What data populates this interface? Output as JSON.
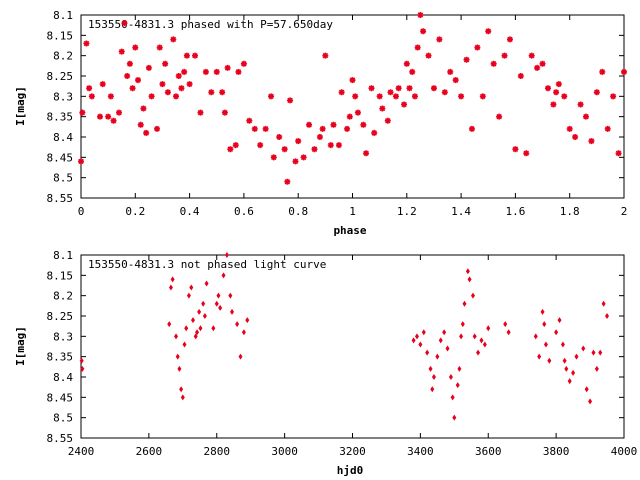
{
  "chart_data": [
    {
      "type": "scatter",
      "title": "153550-4831.3 phased with P=57.650day",
      "xlabel": "phase",
      "ylabel": "I[mag]",
      "xlim": [
        0,
        2
      ],
      "ylim": [
        8.55,
        8.1
      ],
      "y_inverted": true,
      "x_ticks": [
        "0",
        "0.2",
        "0.4",
        "0.6",
        "0.8",
        "1",
        "1.2",
        "1.4",
        "1.6",
        "1.8",
        "2"
      ],
      "y_ticks": [
        "8.1",
        "8.15",
        "8.2",
        "8.25",
        "8.3",
        "8.35",
        "8.4",
        "8.45",
        "8.5",
        "8.55"
      ],
      "marker_color": "#e8001c",
      "grid": false,
      "series": [
        {
          "x": [
            0.0,
            0.005,
            0.02,
            0.03,
            0.04,
            0.07,
            0.08,
            0.1,
            0.11,
            0.12,
            0.14,
            0.15,
            0.16,
            0.17,
            0.18,
            0.19,
            0.2,
            0.21,
            0.22,
            0.23,
            0.24,
            0.25,
            0.26,
            0.28,
            0.29,
            0.3,
            0.31,
            0.32,
            0.34,
            0.35,
            0.36,
            0.37,
            0.38,
            0.39,
            0.4,
            0.42,
            0.44,
            0.46,
            0.48,
            0.5,
            0.52,
            0.53,
            0.54,
            0.55,
            0.57,
            0.58,
            0.6,
            0.62,
            0.64,
            0.66,
            0.68,
            0.7,
            0.71,
            0.73,
            0.75,
            0.76,
            0.77,
            0.79,
            0.8,
            0.82,
            0.84,
            0.86,
            0.88,
            0.89,
            0.9,
            0.92,
            0.93,
            0.95,
            0.96,
            0.98,
            0.99,
            1.0,
            1.01,
            1.02,
            1.04,
            1.05,
            1.07,
            1.08,
            1.1,
            1.11,
            1.13,
            1.14,
            1.16,
            1.17,
            1.19,
            1.2,
            1.21,
            1.22,
            1.23,
            1.24,
            1.25,
            1.26,
            1.28,
            1.3,
            1.32,
            1.34,
            1.36,
            1.38,
            1.4,
            1.42,
            1.44,
            1.46,
            1.48,
            1.5,
            1.52,
            1.54,
            1.56,
            1.58,
            1.6,
            1.62,
            1.64,
            1.66,
            1.68,
            1.7,
            1.72,
            1.74,
            1.75,
            1.76,
            1.78,
            1.8,
            1.82,
            1.84,
            1.86,
            1.88,
            1.9,
            1.92,
            1.94,
            1.96,
            1.98,
            2.0
          ],
          "y": [
            8.46,
            8.34,
            8.17,
            8.28,
            8.3,
            8.35,
            8.27,
            8.35,
            8.3,
            8.36,
            8.34,
            8.19,
            8.12,
            8.25,
            8.22,
            8.28,
            8.18,
            8.26,
            8.37,
            8.33,
            8.39,
            8.23,
            8.3,
            8.38,
            8.18,
            8.27,
            8.22,
            8.29,
            8.16,
            8.3,
            8.25,
            8.28,
            8.24,
            8.2,
            8.27,
            8.2,
            8.34,
            8.24,
            8.29,
            8.24,
            8.29,
            8.34,
            8.23,
            8.43,
            8.42,
            8.24,
            8.22,
            8.36,
            8.38,
            8.42,
            8.38,
            8.3,
            8.45,
            8.4,
            8.43,
            8.51,
            8.31,
            8.46,
            8.41,
            8.45,
            8.37,
            8.43,
            8.4,
            8.38,
            8.2,
            8.42,
            8.37,
            8.42,
            8.29,
            8.38,
            8.35,
            8.26,
            8.3,
            8.34,
            8.37,
            8.44,
            8.28,
            8.39,
            8.3,
            8.33,
            8.36,
            8.29,
            8.3,
            8.28,
            8.32,
            8.22,
            8.28,
            8.24,
            8.3,
            8.18,
            8.1,
            8.14,
            8.2,
            8.28,
            8.16,
            8.29,
            8.24,
            8.26,
            8.3,
            8.21,
            8.38,
            8.18,
            8.3,
            8.14,
            8.22,
            8.35,
            8.2,
            8.16,
            8.43,
            8.25,
            8.44,
            8.2,
            8.23,
            8.22,
            8.28,
            8.32,
            8.29,
            8.27,
            8.3,
            8.38,
            8.4,
            8.32,
            8.35,
            8.41,
            8.29,
            8.24,
            8.38,
            8.3,
            8.44,
            8.24
          ],
          "name": ""
        }
      ]
    },
    {
      "type": "scatter",
      "title": "153550-4831.3 not phased light curve",
      "xlabel": "hjd0",
      "ylabel": "I[mag]",
      "xlim": [
        2400,
        4000
      ],
      "ylim": [
        8.55,
        8.1
      ],
      "y_inverted": true,
      "x_ticks": [
        "2400",
        "2600",
        "2800",
        "3000",
        "3200",
        "3400",
        "3600",
        "3800",
        "4000"
      ],
      "y_ticks": [
        "8.1",
        "8.15",
        "8.2",
        "8.25",
        "8.3",
        "8.35",
        "8.4",
        "8.45",
        "8.5",
        "8.55"
      ],
      "marker_color": "#e8001c",
      "grid": false,
      "series": [
        {
          "x": [
            2402,
            2404,
            2660,
            2665,
            2670,
            2680,
            2685,
            2690,
            2695,
            2700,
            2705,
            2710,
            2718,
            2725,
            2730,
            2738,
            2742,
            2748,
            2752,
            2760,
            2765,
            2770,
            2790,
            2800,
            2805,
            2810,
            2820,
            2830,
            2840,
            2845,
            2860,
            2870,
            2880,
            2890,
            3380,
            3390,
            3400,
            3410,
            3420,
            3430,
            3435,
            3440,
            3450,
            3460,
            3470,
            3480,
            3490,
            3495,
            3500,
            3510,
            3515,
            3520,
            3525,
            3530,
            3540,
            3545,
            3555,
            3560,
            3570,
            3580,
            3590,
            3600,
            3650,
            3660,
            3740,
            3750,
            3760,
            3765,
            3770,
            3780,
            3800,
            3810,
            3820,
            3825,
            3830,
            3840,
            3850,
            3860,
            3880,
            3890,
            3900,
            3910,
            3920,
            3930,
            3940,
            3950
          ],
          "y": [
            8.36,
            8.38,
            8.27,
            8.18,
            8.16,
            8.3,
            8.35,
            8.38,
            8.43,
            8.45,
            8.32,
            8.28,
            8.2,
            8.18,
            8.26,
            8.3,
            8.29,
            8.24,
            8.28,
            8.22,
            8.25,
            8.17,
            8.28,
            8.22,
            8.2,
            8.23,
            8.15,
            8.1,
            8.2,
            8.24,
            8.27,
            8.35,
            8.29,
            8.26,
            8.31,
            8.3,
            8.32,
            8.29,
            8.34,
            8.38,
            8.43,
            8.4,
            8.35,
            8.31,
            8.29,
            8.33,
            8.4,
            8.45,
            8.5,
            8.42,
            8.38,
            8.3,
            8.27,
            8.22,
            8.14,
            8.16,
            8.2,
            8.3,
            8.34,
            8.31,
            8.32,
            8.28,
            8.27,
            8.29,
            8.3,
            8.35,
            8.24,
            8.27,
            8.32,
            8.36,
            8.29,
            8.26,
            8.32,
            8.36,
            8.38,
            8.41,
            8.39,
            8.35,
            8.33,
            8.43,
            8.46,
            8.34,
            8.38,
            8.34,
            8.22,
            8.25
          ],
          "name": ""
        }
      ]
    }
  ]
}
